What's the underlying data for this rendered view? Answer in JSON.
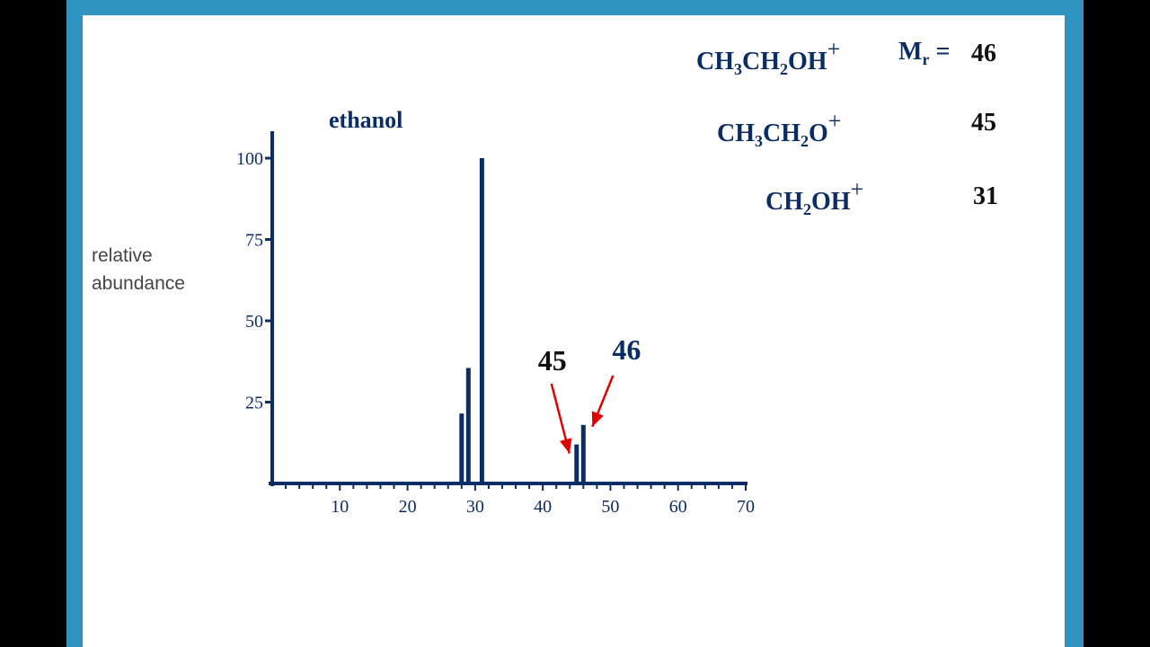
{
  "colors": {
    "background": "#000000",
    "frame": "#2f93c0",
    "slide": "#ffffff",
    "navy": "#0b2d66",
    "arrow": "#e00000",
    "black_text": "#111111"
  },
  "fragments": [
    {
      "main": "CH",
      "sub1": "3",
      "mid": "CH",
      "sub2": "2",
      "tail": "OH",
      "sup": "+"
    },
    {
      "main": "CH",
      "sub1": "3",
      "mid": "CH",
      "sub2": "2",
      "tail": "O",
      "sup": "+"
    },
    {
      "main": "CH",
      "sub1": "",
      "mid": "",
      "sub2": "2",
      "tail": "OH",
      "sup": "+"
    }
  ],
  "mr_label": {
    "text": "M",
    "sub": "r",
    "eq": "="
  },
  "masses": [
    "46",
    "45",
    "31"
  ],
  "chart_data": {
    "type": "bar",
    "title": "ethanol",
    "xlabel": "",
    "ylabel": "relative abundance",
    "ylabel_lines": [
      "relative",
      "abundance"
    ],
    "xlim": [
      0,
      70
    ],
    "ylim": [
      0,
      100
    ],
    "xticks": [
      10,
      20,
      30,
      40,
      50,
      60,
      70
    ],
    "yticks": [
      25,
      50,
      75,
      100
    ],
    "x": [
      28,
      29,
      31,
      45,
      46
    ],
    "values": [
      21.5,
      35.5,
      100,
      12,
      18
    ],
    "annotations": [
      {
        "text": "45",
        "target_x": 45,
        "color": "#111111"
      },
      {
        "text": "46",
        "target_x": 46,
        "color": "#0b2d66"
      }
    ],
    "grid": false,
    "legend": "none"
  }
}
